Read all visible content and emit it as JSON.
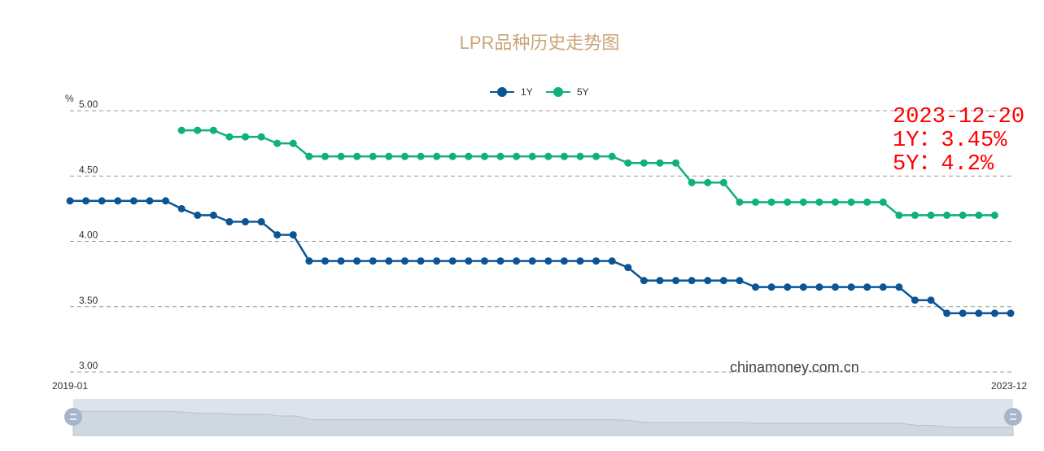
{
  "chart_data": {
    "type": "line",
    "title": "LPR品种历史走势图",
    "ylabel": "%",
    "ylim": [
      3.0,
      5.0
    ],
    "yticks": [
      "3.00",
      "3.50",
      "4.00",
      "4.50",
      "5.00"
    ],
    "xtick_labels": [
      "2019-01",
      "2023-12"
    ],
    "grid": true,
    "legend_position": "top-center",
    "x_start": "2019-01",
    "x_count": 60,
    "series": [
      {
        "name": "1Y",
        "color": "#0c5595",
        "start_index": 0,
        "values": [
          4.31,
          4.31,
          4.31,
          4.31,
          4.31,
          4.31,
          4.31,
          4.25,
          4.2,
          4.2,
          4.15,
          4.15,
          4.15,
          4.05,
          4.05,
          3.85,
          3.85,
          3.85,
          3.85,
          3.85,
          3.85,
          3.85,
          3.85,
          3.85,
          3.85,
          3.85,
          3.85,
          3.85,
          3.85,
          3.85,
          3.85,
          3.85,
          3.85,
          3.85,
          3.85,
          3.8,
          3.7,
          3.7,
          3.7,
          3.7,
          3.7,
          3.7,
          3.7,
          3.65,
          3.65,
          3.65,
          3.65,
          3.65,
          3.65,
          3.65,
          3.65,
          3.65,
          3.65,
          3.55,
          3.55,
          3.45,
          3.45,
          3.45,
          3.45,
          3.45
        ]
      },
      {
        "name": "5Y",
        "color": "#0fb07a",
        "start_index": 7,
        "values": [
          4.85,
          4.85,
          4.85,
          4.8,
          4.8,
          4.8,
          4.75,
          4.75,
          4.65,
          4.65,
          4.65,
          4.65,
          4.65,
          4.65,
          4.65,
          4.65,
          4.65,
          4.65,
          4.65,
          4.65,
          4.65,
          4.65,
          4.65,
          4.65,
          4.65,
          4.65,
          4.65,
          4.65,
          4.6,
          4.6,
          4.6,
          4.6,
          4.45,
          4.45,
          4.45,
          4.3,
          4.3,
          4.3,
          4.3,
          4.3,
          4.3,
          4.3,
          4.3,
          4.3,
          4.3,
          4.2,
          4.2,
          4.2,
          4.2,
          4.2,
          4.2,
          4.2
        ]
      }
    ],
    "annotation": {
      "date": "2023-12-20",
      "line1": "1Y：3.45%",
      "line2": "5Y：4.2%"
    },
    "watermark": "chinamoney.com.cn"
  }
}
